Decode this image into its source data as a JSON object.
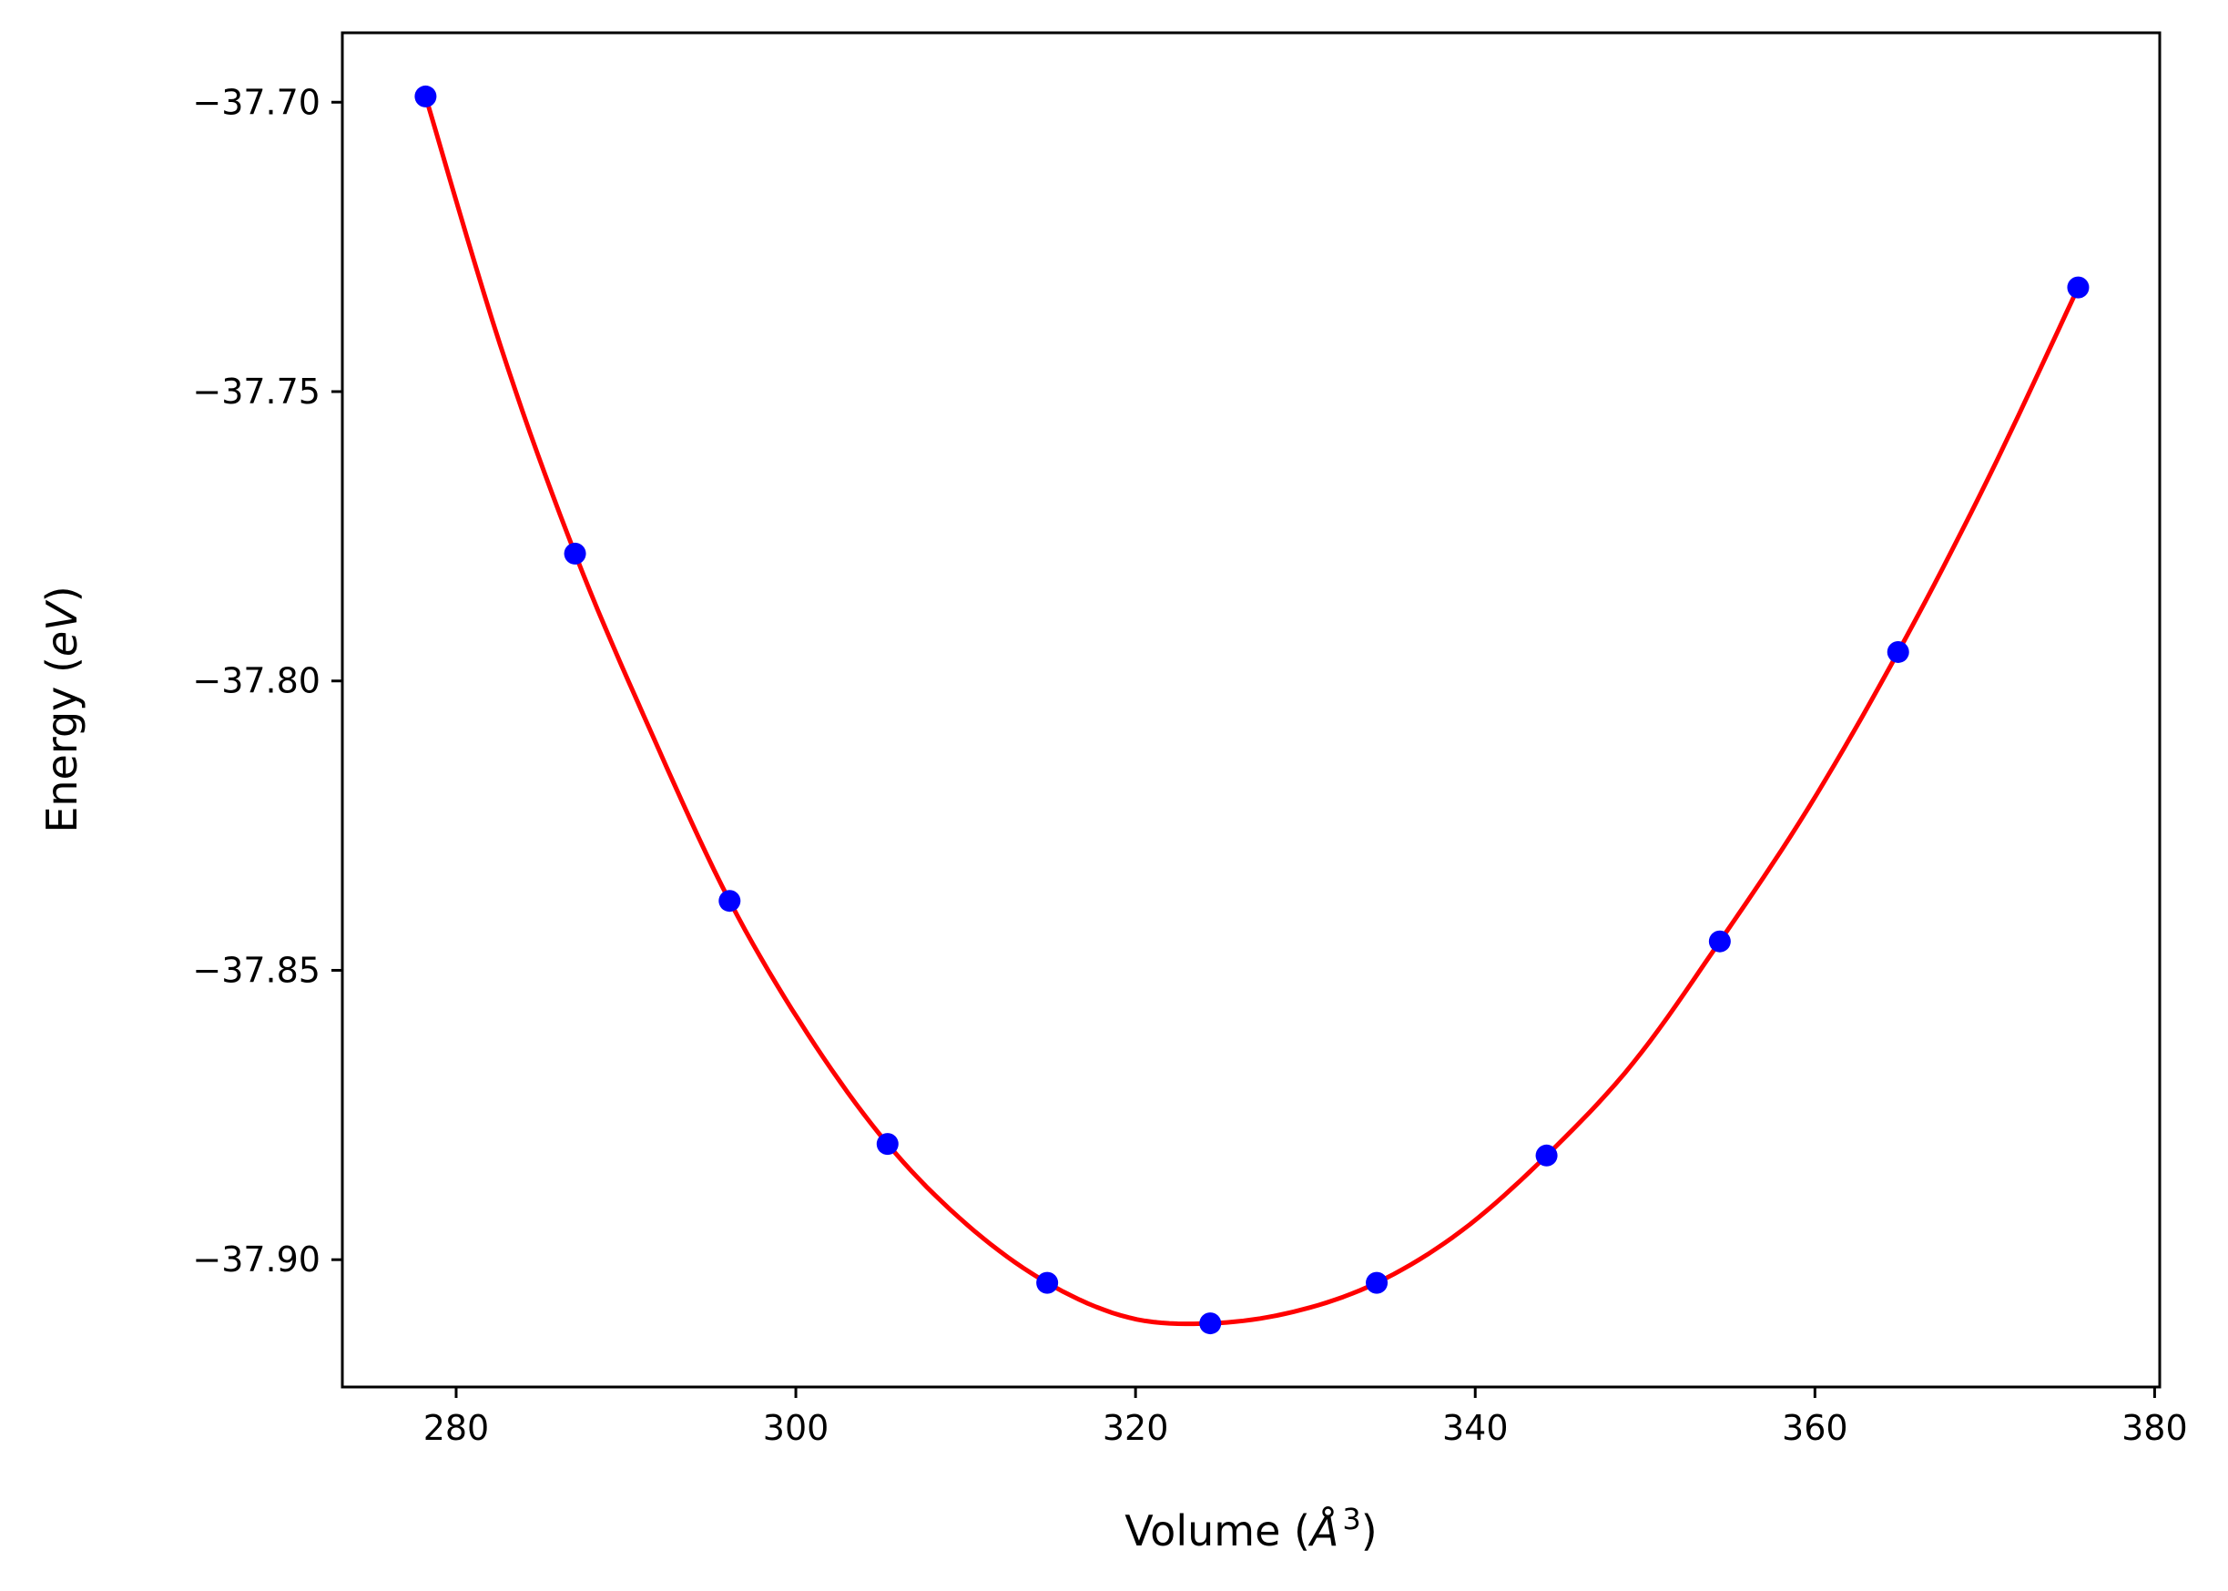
{
  "chart_data": {
    "type": "scatter",
    "title": "",
    "xlabel": {
      "prefix": "Volume (",
      "italic": "Å",
      "sup": "3",
      "suffix": ")"
    },
    "ylabel": {
      "prefix": "Energy (",
      "italic": "eV",
      "suffix": ")"
    },
    "xlim": [
      273.3,
      380.3
    ],
    "ylim": [
      -37.922,
      -37.688
    ],
    "x_ticks": [
      280,
      300,
      320,
      340,
      360,
      380
    ],
    "y_ticks": [
      -37.7,
      -37.75,
      -37.8,
      -37.85,
      -37.9
    ],
    "x_tick_labels": [
      "280",
      "300",
      "320",
      "340",
      "360",
      "380"
    ],
    "y_tick_labels": [
      "−37.70",
      "−37.75",
      "−37.80",
      "−37.85",
      "−37.90"
    ],
    "grid": false,
    "legend": "none",
    "series": [
      {
        "kind": "points",
        "color": "#0000ff",
        "x": [
          278.2,
          287.0,
          296.1,
          305.4,
          314.8,
          324.4,
          334.2,
          344.2,
          354.4,
          364.9,
          375.5
        ],
        "y": [
          -37.699,
          -37.778,
          -37.838,
          -37.88,
          -37.904,
          -37.911,
          -37.904,
          -37.882,
          -37.845,
          -37.795,
          -37.732
        ]
      },
      {
        "kind": "fit-curve",
        "color": "#ff0000",
        "x": [
          278.2,
          282.6,
          287.0,
          291.5,
          296.1,
          300.7,
          305.4,
          310.1,
          314.8,
          319.6,
          324.4,
          329.3,
          334.2,
          339.2,
          344.2,
          349.3,
          354.4,
          359.6,
          364.9,
          370.2,
          375.5
        ],
        "y": [
          -37.699,
          -37.742,
          -37.778,
          -37.809,
          -37.838,
          -37.861,
          -37.88,
          -37.894,
          -37.904,
          -37.91,
          -37.911,
          -37.909,
          -37.904,
          -37.895,
          -37.882,
          -37.866,
          -37.845,
          -37.822,
          -37.795,
          -37.765,
          -37.732
        ]
      }
    ]
  }
}
